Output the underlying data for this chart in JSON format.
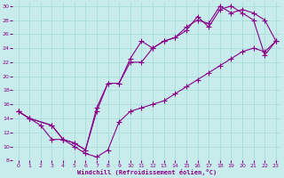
{
  "xlabel": "Windchill (Refroidissement éolien,°C)",
  "bg_color": "#c8ecec",
  "line_color": "#880088",
  "grid_color": "#aadddd",
  "xlim": [
    -0.5,
    23.5
  ],
  "ylim": [
    8,
    30.5
  ],
  "xticks": [
    0,
    1,
    2,
    3,
    4,
    5,
    6,
    7,
    8,
    9,
    10,
    11,
    12,
    13,
    14,
    15,
    16,
    17,
    18,
    19,
    20,
    21,
    22,
    23
  ],
  "yticks": [
    8,
    10,
    12,
    14,
    16,
    18,
    20,
    22,
    24,
    26,
    28,
    30
  ],
  "series1_x": [
    0,
    1,
    2,
    3,
    4,
    5,
    6,
    7,
    8,
    9,
    10,
    11,
    12,
    13,
    14,
    15,
    16,
    17,
    18,
    19,
    20,
    21,
    22,
    23
  ],
  "series1_y": [
    15,
    14,
    13,
    11,
    11,
    10,
    9,
    8.5,
    9.5,
    13.5,
    15,
    15.5,
    16,
    16.5,
    17.5,
    18.5,
    19.5,
    20.5,
    21.5,
    22.5,
    23.5,
    24,
    23.5,
    25
  ],
  "series2_x": [
    0,
    1,
    3,
    4,
    5,
    6,
    7,
    8,
    9,
    10,
    11,
    12,
    13,
    14,
    15,
    16,
    17,
    18,
    19,
    20,
    21,
    22,
    23
  ],
  "series2_y": [
    15,
    14,
    13,
    11,
    10.5,
    9.5,
    15,
    19,
    19,
    22,
    22,
    24,
    25,
    25.5,
    27,
    28,
    27.5,
    30,
    29,
    29.5,
    29,
    28,
    25
  ],
  "series3_x": [
    0,
    1,
    3,
    4,
    5,
    6,
    7,
    8,
    9,
    10,
    11,
    12,
    13,
    14,
    15,
    16,
    17,
    18,
    19,
    20,
    21,
    22,
    23
  ],
  "series3_y": [
    15,
    14,
    13,
    11,
    10.5,
    9.5,
    15.5,
    19,
    19,
    22.5,
    25,
    24,
    25,
    25.5,
    26.5,
    28.5,
    27,
    29.5,
    30,
    29,
    28,
    23,
    25
  ]
}
